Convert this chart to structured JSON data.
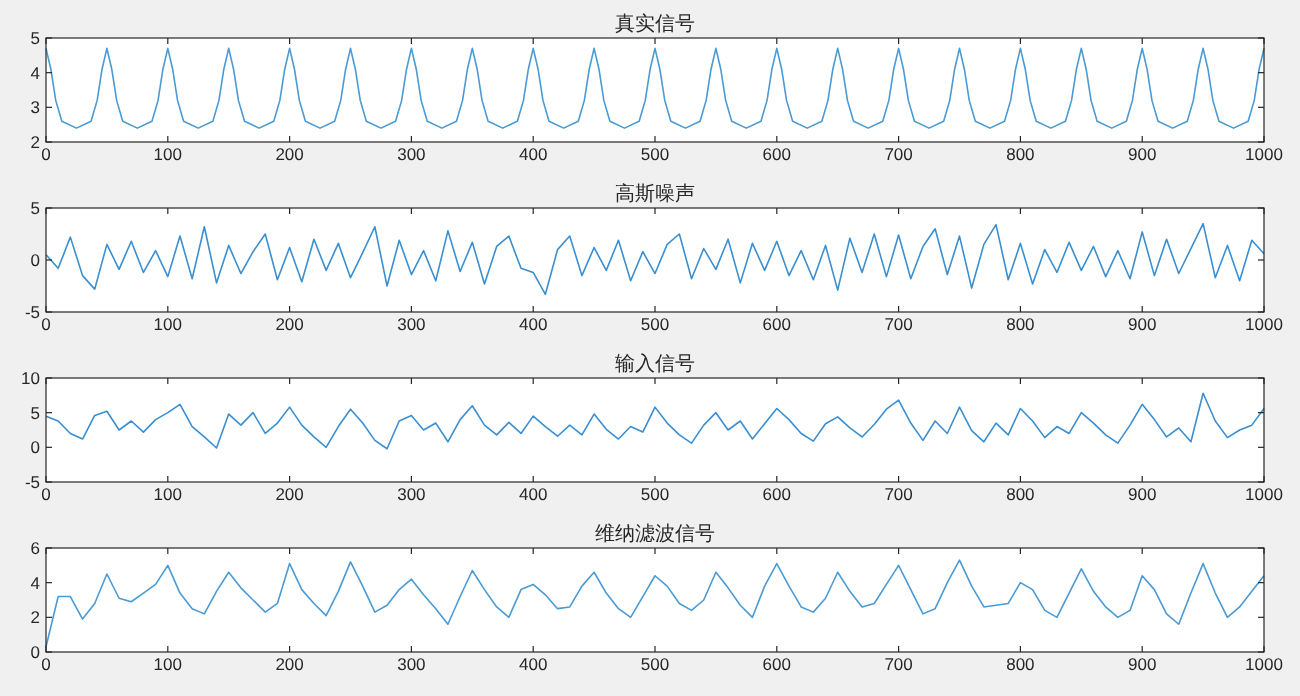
{
  "chart_data": [
    {
      "type": "line",
      "title": "真实信号",
      "color": "#4a9ad4",
      "xlim": [
        0,
        1000
      ],
      "xticks": [
        0,
        100,
        200,
        300,
        400,
        500,
        600,
        700,
        800,
        900,
        1000
      ],
      "ylim": [
        2,
        5
      ],
      "yticks": [
        2,
        3,
        4,
        5
      ],
      "x": [
        0,
        4,
        8,
        13,
        25,
        37,
        42,
        46,
        50,
        54,
        58,
        63,
        75,
        87,
        92,
        96,
        100,
        104,
        108,
        113,
        125,
        137,
        142,
        146,
        150,
        154,
        158,
        163,
        175,
        187,
        192,
        196,
        200,
        204,
        208,
        213,
        225,
        237,
        242,
        246,
        250,
        254,
        258,
        263,
        275,
        287,
        292,
        296,
        300,
        304,
        308,
        313,
        325,
        337,
        342,
        346,
        350,
        354,
        358,
        363,
        375,
        387,
        392,
        396,
        400,
        404,
        408,
        413,
        425,
        437,
        442,
        446,
        450,
        454,
        458,
        463,
        475,
        487,
        492,
        496,
        500,
        504,
        508,
        513,
        525,
        537,
        542,
        546,
        550,
        554,
        558,
        563,
        575,
        587,
        592,
        596,
        600,
        604,
        608,
        613,
        625,
        637,
        642,
        646,
        650,
        654,
        658,
        663,
        675,
        687,
        692,
        696,
        700,
        704,
        708,
        713,
        725,
        737,
        742,
        746,
        750,
        754,
        758,
        763,
        775,
        787,
        792,
        796,
        800,
        804,
        808,
        813,
        825,
        837,
        842,
        846,
        850,
        854,
        858,
        863,
        875,
        887,
        892,
        896,
        900,
        904,
        908,
        913,
        925,
        937,
        942,
        946,
        950,
        954,
        958,
        963,
        975,
        987,
        992,
        996,
        1000
      ],
      "values": [
        4.7,
        4.1,
        3.2,
        2.6,
        2.4,
        2.6,
        3.2,
        4.1,
        4.7,
        4.1,
        3.2,
        2.6,
        2.4,
        2.6,
        3.2,
        4.1,
        4.7,
        4.1,
        3.2,
        2.6,
        2.4,
        2.6,
        3.2,
        4.1,
        4.7,
        4.1,
        3.2,
        2.6,
        2.4,
        2.6,
        3.2,
        4.1,
        4.7,
        4.1,
        3.2,
        2.6,
        2.4,
        2.6,
        3.2,
        4.1,
        4.7,
        4.1,
        3.2,
        2.6,
        2.4,
        2.6,
        3.2,
        4.1,
        4.7,
        4.1,
        3.2,
        2.6,
        2.4,
        2.6,
        3.2,
        4.1,
        4.7,
        4.1,
        3.2,
        2.6,
        2.4,
        2.6,
        3.2,
        4.1,
        4.7,
        4.1,
        3.2,
        2.6,
        2.4,
        2.6,
        3.2,
        4.1,
        4.7,
        4.1,
        3.2,
        2.6,
        2.4,
        2.6,
        3.2,
        4.1,
        4.7,
        4.1,
        3.2,
        2.6,
        2.4,
        2.6,
        3.2,
        4.1,
        4.7,
        4.1,
        3.2,
        2.6,
        2.4,
        2.6,
        3.2,
        4.1,
        4.7,
        4.1,
        3.2,
        2.6,
        2.4,
        2.6,
        3.2,
        4.1,
        4.7,
        4.1,
        3.2,
        2.6,
        2.4,
        2.6,
        3.2,
        4.1,
        4.7,
        4.1,
        3.2,
        2.6,
        2.4,
        2.6,
        3.2,
        4.1,
        4.7,
        4.1,
        3.2,
        2.6,
        2.4,
        2.6,
        3.2,
        4.1,
        4.7,
        4.1,
        3.2,
        2.6,
        2.4,
        2.6,
        3.2,
        4.1,
        4.7,
        4.1,
        3.2,
        2.6,
        2.4,
        2.6,
        3.2,
        4.1,
        4.7,
        4.1,
        3.2,
        2.6,
        2.4,
        2.6,
        3.2,
        4.1,
        4.7,
        4.1,
        3.2,
        2.6,
        2.4,
        2.6,
        3.2,
        4.1,
        4.7
      ]
    },
    {
      "type": "line",
      "title": "高斯噪声",
      "color": "#3a8fd0",
      "xlim": [
        0,
        1000
      ],
      "xticks": [
        0,
        100,
        200,
        300,
        400,
        500,
        600,
        700,
        800,
        900,
        1000
      ],
      "ylim": [
        -5,
        5
      ],
      "yticks": [
        -5,
        0,
        5
      ],
      "x": [
        0,
        10,
        20,
        30,
        40,
        50,
        60,
        70,
        80,
        90,
        100,
        110,
        120,
        130,
        140,
        150,
        160,
        170,
        180,
        190,
        200,
        210,
        220,
        230,
        240,
        250,
        260,
        270,
        280,
        290,
        300,
        310,
        320,
        330,
        340,
        350,
        360,
        370,
        380,
        390,
        400,
        410,
        420,
        430,
        440,
        450,
        460,
        470,
        480,
        490,
        500,
        510,
        520,
        530,
        540,
        550,
        560,
        570,
        580,
        590,
        600,
        610,
        620,
        630,
        640,
        650,
        660,
        670,
        680,
        690,
        700,
        710,
        720,
        730,
        740,
        750,
        760,
        770,
        780,
        790,
        800,
        810,
        820,
        830,
        840,
        850,
        860,
        870,
        880,
        890,
        900,
        910,
        920,
        930,
        940,
        950,
        960,
        970,
        980,
        990,
        1000
      ],
      "values": [
        0.5,
        -0.8,
        2.2,
        -1.5,
        -2.8,
        1.5,
        -0.9,
        1.8,
        -1.2,
        0.9,
        -1.6,
        2.3,
        -1.8,
        3.2,
        -2.2,
        1.4,
        -1.3,
        0.8,
        2.5,
        -1.9,
        1.2,
        -2.1,
        2.0,
        -1.0,
        1.6,
        -1.7,
        0.7,
        3.2,
        -2.5,
        1.9,
        -1.4,
        0.9,
        -2.0,
        2.8,
        -1.1,
        1.7,
        -2.3,
        1.3,
        2.3,
        -0.8,
        -1.2,
        -3.3,
        1.0,
        2.3,
        -1.5,
        1.2,
        -1.0,
        1.9,
        -2.0,
        0.8,
        -1.3,
        1.5,
        2.5,
        -1.8,
        1.1,
        -0.9,
        2.0,
        -2.2,
        1.6,
        -1.0,
        1.8,
        -1.5,
        0.9,
        -1.9,
        1.4,
        -2.9,
        2.1,
        -1.2,
        2.5,
        -1.6,
        2.4,
        -1.8,
        1.3,
        3.0,
        -1.4,
        2.3,
        -2.7,
        1.5,
        3.4,
        -1.9,
        1.6,
        -2.3,
        1.0,
        -1.2,
        1.7,
        -1.0,
        1.3,
        -1.6,
        0.9,
        -1.8,
        2.7,
        -1.5,
        2.0,
        -1.3,
        1.1,
        3.5,
        -1.7,
        1.4,
        -2.0,
        1.9,
        0.6
      ]
    },
    {
      "type": "line",
      "title": "输入信号",
      "color": "#3a8fd0",
      "xlim": [
        0,
        1000
      ],
      "xticks": [
        0,
        100,
        200,
        300,
        400,
        500,
        600,
        700,
        800,
        900,
        1000
      ],
      "ylim": [
        -5,
        10
      ],
      "yticks": [
        -5,
        0,
        5,
        10
      ],
      "x": [
        0,
        10,
        20,
        30,
        40,
        50,
        60,
        70,
        80,
        90,
        100,
        110,
        120,
        130,
        140,
        150,
        160,
        170,
        180,
        190,
        200,
        210,
        220,
        230,
        240,
        250,
        260,
        270,
        280,
        290,
        300,
        310,
        320,
        330,
        340,
        350,
        360,
        370,
        380,
        390,
        400,
        410,
        420,
        430,
        440,
        450,
        460,
        470,
        480,
        490,
        500,
        510,
        520,
        530,
        540,
        550,
        560,
        570,
        580,
        590,
        600,
        610,
        620,
        630,
        640,
        650,
        660,
        670,
        680,
        690,
        700,
        710,
        720,
        730,
        740,
        750,
        760,
        770,
        780,
        790,
        800,
        810,
        820,
        830,
        840,
        850,
        860,
        870,
        880,
        890,
        900,
        910,
        920,
        930,
        940,
        950,
        960,
        970,
        980,
        990,
        1000
      ],
      "values": [
        4.5,
        3.8,
        2.0,
        1.2,
        4.6,
        5.2,
        2.5,
        3.8,
        2.2,
        4.0,
        5.0,
        6.2,
        3.0,
        1.5,
        -0.1,
        4.8,
        3.2,
        5.0,
        2.0,
        3.5,
        5.8,
        3.2,
        1.5,
        0.0,
        3.0,
        5.5,
        3.5,
        1.0,
        -0.2,
        3.8,
        4.6,
        2.5,
        3.5,
        0.8,
        4.0,
        6.0,
        3.2,
        1.8,
        3.6,
        2.0,
        4.5,
        3.0,
        1.6,
        3.2,
        1.8,
        4.8,
        2.6,
        1.2,
        3.0,
        2.2,
        5.8,
        3.5,
        1.8,
        0.6,
        3.2,
        5.0,
        2.5,
        3.8,
        1.2,
        3.4,
        5.6,
        4.0,
        2.0,
        0.9,
        3.4,
        4.4,
        2.8,
        1.5,
        3.3,
        5.5,
        6.8,
        3.5,
        1.0,
        3.8,
        2.0,
        5.8,
        2.4,
        0.8,
        3.5,
        1.8,
        5.6,
        3.8,
        1.4,
        3.0,
        2.0,
        5.0,
        3.5,
        1.8,
        0.6,
        3.2,
        6.2,
        4.0,
        1.5,
        2.8,
        0.8,
        7.8,
        3.8,
        1.4,
        2.5,
        3.2,
        5.6
      ]
    },
    {
      "type": "line",
      "title": "维纳滤波信号",
      "color": "#4a9ad4",
      "xlim": [
        0,
        1000
      ],
      "xticks": [
        0,
        100,
        200,
        300,
        400,
        500,
        600,
        700,
        800,
        900,
        1000
      ],
      "ylim": [
        0,
        6
      ],
      "yticks": [
        0,
        2,
        4,
        6
      ],
      "x": [
        0,
        10,
        20,
        30,
        40,
        50,
        60,
        70,
        80,
        90,
        100,
        110,
        120,
        130,
        140,
        150,
        160,
        170,
        180,
        190,
        200,
        210,
        220,
        230,
        240,
        250,
        260,
        270,
        280,
        290,
        300,
        310,
        320,
        330,
        340,
        350,
        360,
        370,
        380,
        390,
        400,
        410,
        420,
        430,
        440,
        450,
        460,
        470,
        480,
        490,
        500,
        510,
        520,
        530,
        540,
        550,
        560,
        570,
        580,
        590,
        600,
        610,
        620,
        630,
        640,
        650,
        660,
        670,
        680,
        690,
        700,
        710,
        720,
        730,
        740,
        750,
        760,
        770,
        780,
        790,
        800,
        810,
        820,
        830,
        840,
        850,
        860,
        870,
        880,
        890,
        900,
        910,
        920,
        930,
        940,
        950,
        960,
        970,
        980,
        990,
        1000
      ],
      "values": [
        0.3,
        3.2,
        3.2,
        1.9,
        2.8,
        4.5,
        3.1,
        2.9,
        3.4,
        3.9,
        5.0,
        3.4,
        2.5,
        2.2,
        3.5,
        4.6,
        3.7,
        3.0,
        2.3,
        2.8,
        5.1,
        3.6,
        2.8,
        2.1,
        3.5,
        5.2,
        3.8,
        2.3,
        2.7,
        3.6,
        4.2,
        3.3,
        2.5,
        1.6,
        3.2,
        4.7,
        3.6,
        2.6,
        2.0,
        3.6,
        3.9,
        3.3,
        2.5,
        2.6,
        3.8,
        4.6,
        3.4,
        2.5,
        2.0,
        3.2,
        4.4,
        3.8,
        2.8,
        2.4,
        3.0,
        4.6,
        3.7,
        2.7,
        2.0,
        3.8,
        5.1,
        3.8,
        2.6,
        2.3,
        3.1,
        4.6,
        3.5,
        2.6,
        2.8,
        3.9,
        5.0,
        3.6,
        2.2,
        2.5,
        4.0,
        5.3,
        3.8,
        2.6,
        2.7,
        2.8,
        4.0,
        3.6,
        2.4,
        2.0,
        3.4,
        4.8,
        3.5,
        2.6,
        2.0,
        2.4,
        4.4,
        3.6,
        2.2,
        1.6,
        3.4,
        5.1,
        3.4,
        2.0,
        2.6,
        3.5,
        4.4
      ]
    }
  ]
}
